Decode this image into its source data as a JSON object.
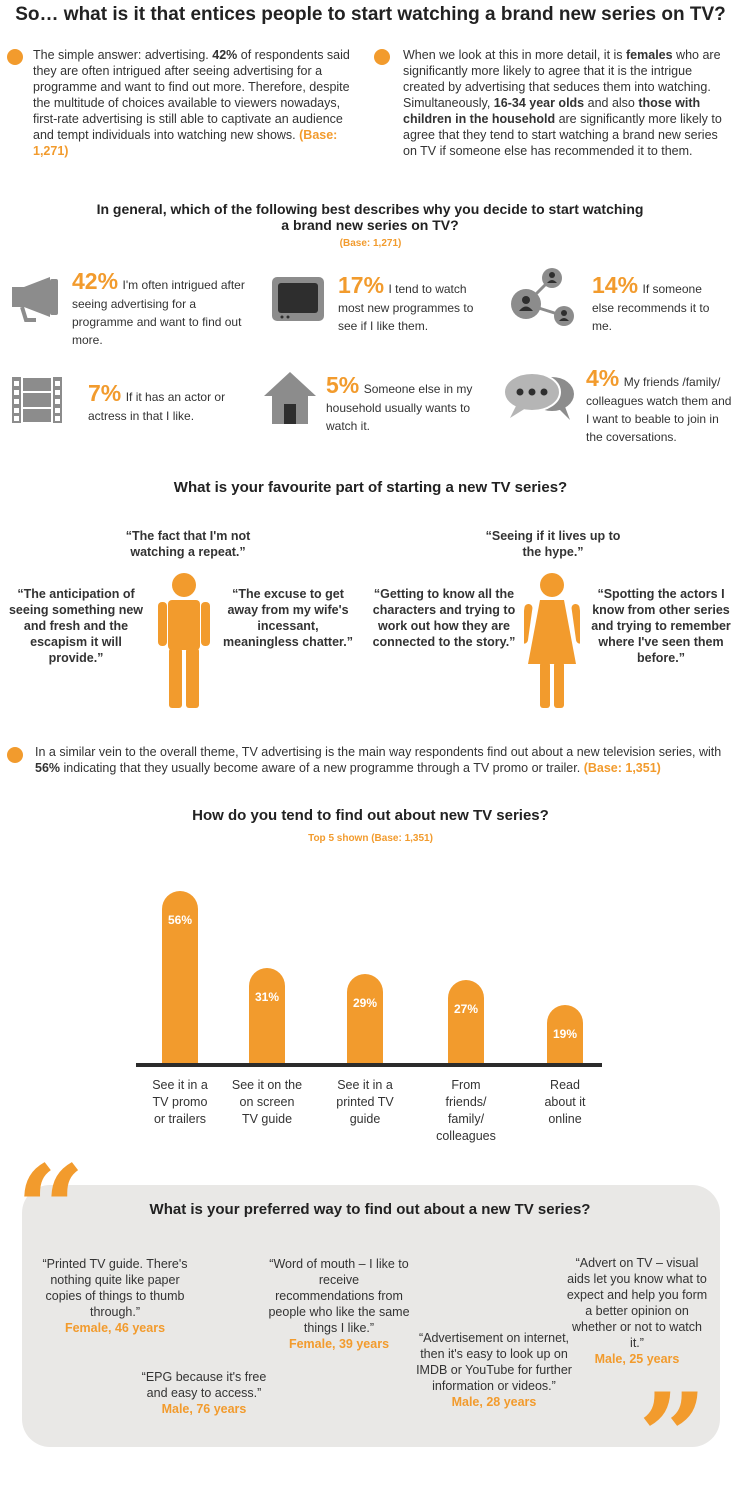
{
  "header": {
    "title": "So… what is it that entices people to start watching a brand new series on TV?"
  },
  "intro": {
    "left": {
      "pre": "The simple answer: advertising. ",
      "bold": "42%",
      "post": " of respondents said they are often intrigued after seeing advertising for a programme and want to find out more. Therefore, despite the multitude of choices available to viewers nowadays, first-rate advertising is still able to captivate an audience and tempt individuals into watching new shows. ",
      "base": "(Base: 1,271)"
    },
    "right": {
      "p1": "When we look at this in more detail, it is ",
      "b1": "females",
      "p2": " who are significantly more likely to agree that it is the intrigue created by advertising that seduces them into watching. Simultaneously, ",
      "b2": "16-34 year olds",
      "p3": " and also ",
      "b3": "those with children in the household",
      "p4": " are significantly more likely to agree that they tend to start watching a brand new series on TV if someone else has recommended it to them."
    }
  },
  "reasons": {
    "title_line1": "In general, which of the following best describes why you decide to start watching",
    "title_line2": "a brand new series on TV?",
    "base": "(Base: 1,271)",
    "items": [
      {
        "pct": "42%",
        "text": "I'm often intrigued after seeing advertising for a programme and want to find out more.",
        "icon": "megaphone-icon"
      },
      {
        "pct": "17%",
        "text": "I tend to watch most new programmes to see if I like them.",
        "icon": "tv-icon"
      },
      {
        "pct": "14%",
        "text": "If someone else recommends it to me.",
        "icon": "network-icon"
      },
      {
        "pct": "7%",
        "text": "If it has an actor or actress in that I like.",
        "icon": "film-icon"
      },
      {
        "pct": "5%",
        "text": "Someone else in my household usually wants to watch it.",
        "icon": "house-icon"
      },
      {
        "pct": "4%",
        "text": "My friends /family/ colleagues watch them and I want to beable to join in the coversations.",
        "icon": "chat-icon"
      }
    ]
  },
  "favourite": {
    "title": "What is your favourite part of starting a new TV series?",
    "male_quotes": [
      "“The fact that I'm not watching a repeat.”",
      "“The anticipation of seeing something new and fresh and the escapism it will provide.”",
      "“The excuse to get away from my wife's incessant, meaningless chatter.”"
    ],
    "female_quotes": [
      "“Seeing if it lives up to the hype.”",
      "“Getting to know all the characters and trying to work out how they are connected to the story.”",
      "“Spotting the actors I know from other series and trying to remember where I've seen them before.”"
    ]
  },
  "awareness": {
    "pre": "In a similar vein to the overall theme, TV advertising is the main way respondents find out about a new television series, with ",
    "bold": "56%",
    "post": " indicating that they usually become aware of a new programme through a TV promo or trailer. ",
    "base": "(Base: 1,351)"
  },
  "chart_data": {
    "type": "bar",
    "title": "How do you tend to find out about new TV series?",
    "subtitle": "Top 5 shown (Base: 1,351)",
    "categories": [
      "See it in a TV promo or trailers",
      "See it on the on screen TV guide",
      "See it in a printed TV guide",
      "From friends/ family/ colleagues",
      "Read about it online"
    ],
    "category_lines": [
      [
        "See it in a",
        "TV promo",
        "or trailers"
      ],
      [
        "See it on the",
        "on screen",
        "TV guide"
      ],
      [
        "See it in a",
        "printed TV",
        "guide"
      ],
      [
        "From",
        "friends/",
        "family/",
        "colleagues"
      ],
      [
        "Read",
        "about it",
        "online"
      ]
    ],
    "values": [
      56,
      31,
      29,
      27,
      19
    ],
    "value_labels": [
      "56%",
      "31%",
      "29%",
      "27%",
      "19%"
    ],
    "ylim": [
      0,
      60
    ],
    "grid": false,
    "bar_color": "#f29b2d"
  },
  "preferred": {
    "title": "What is your preferred way to find out about a new TV series?",
    "quotes": [
      {
        "text": "“Printed TV guide. There's nothing quite like paper copies of things to thumb through.”",
        "who": "Female, 46 years"
      },
      {
        "text": "“Word of mouth – I like to receive recommendations from people who like the same things I like.”",
        "who": "Female, 39 years"
      },
      {
        "text": "“Advert on TV – visual aids let you know what to expect and help you form a better opinion on whether or not to watch it.”",
        "who": "Male, 25 years"
      },
      {
        "text": "“EPG because it's free and easy to access.”",
        "who": "Male, 76 years"
      },
      {
        "text": "“Advertisement on internet, then it's easy to look up on IMDB or YouTube for further information or videos.”",
        "who": "Male, 28 years"
      }
    ]
  },
  "colors": {
    "accent": "#f29b2d",
    "icon_gray": "#8c8c8c",
    "panel": "#e9e8e6"
  }
}
